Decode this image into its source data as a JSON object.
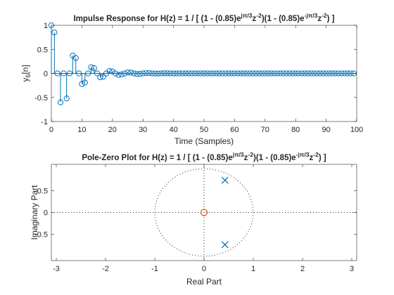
{
  "chart_data": [
    {
      "type": "stem",
      "title": {
        "prefix": "Impulse Response for H(z) = 1 / [ (1 - (0.85)e",
        "exp1": "jπ/3",
        "mid1": "z",
        "exp2": "-2",
        "mid2": ")(1 - (0.85)e",
        "exp3": "-jπ/3",
        "mid3": "z",
        "exp4": "-2",
        "suffix": ") ]"
      },
      "xlabel": "Time (Samples)",
      "ylabel": {
        "base": "y",
        "sub": "6",
        "rest": "[n]"
      },
      "xlim": [
        0,
        100
      ],
      "ylim": [
        -1,
        1
      ],
      "xticks": [
        "0",
        "10",
        "20",
        "30",
        "40",
        "50",
        "60",
        "70",
        "80",
        "90",
        "100"
      ],
      "yticks": [
        "1",
        "0.5",
        "0",
        "-0.5",
        "-1"
      ],
      "n": [
        0,
        1,
        2,
        3,
        4,
        5,
        6,
        7,
        8,
        9,
        10,
        11,
        12,
        13,
        14,
        15,
        16,
        17,
        18,
        19,
        20,
        21,
        22,
        23,
        24,
        25,
        26,
        27,
        28,
        29,
        30,
        31,
        32,
        33,
        34,
        35,
        36,
        37,
        38,
        39,
        40,
        41,
        42,
        43,
        44,
        45,
        46,
        47,
        48,
        49,
        50,
        51,
        52,
        53,
        54,
        55,
        56,
        57,
        58,
        59,
        60,
        61,
        62,
        63,
        64,
        65,
        66,
        67,
        68,
        69,
        70,
        71,
        72,
        73,
        74,
        75,
        76,
        77,
        78,
        79,
        80,
        81,
        82,
        83,
        84,
        85,
        86,
        87,
        88,
        89,
        90,
        91,
        92,
        93,
        94,
        95,
        96,
        97,
        98,
        99
      ],
      "values": [
        1.0,
        0.85,
        0.0,
        -0.6,
        0.0,
        -0.52,
        0.0,
        0.37,
        0.32,
        0.0,
        -0.22,
        -0.19,
        0.0,
        0.13,
        0.11,
        0.0,
        -0.08,
        -0.07,
        0.0,
        0.05,
        0.04,
        0.0,
        -0.03,
        -0.02,
        0.0,
        0.02,
        0.016,
        0.0,
        -0.01,
        -0.009,
        0.0,
        0.006,
        0.005,
        0.0,
        -0.003,
        -0.003,
        0.0,
        0.002,
        0.002,
        0.0,
        -0.001,
        -0.001,
        0.0,
        0.001,
        0.001,
        0.0,
        0.0,
        0.0,
        0.0,
        0.0,
        0.0,
        0.0,
        0.0,
        0.0,
        0.0,
        0.0,
        0.0,
        0.0,
        0.0,
        0.0,
        0.0,
        0.0,
        0.0,
        0.0,
        0.0,
        0.0,
        0.0,
        0.0,
        0.0,
        0.0,
        0.0,
        0.0,
        0.0,
        0.0,
        0.0,
        0.0,
        0.0,
        0.0,
        0.0,
        0.0,
        0.0,
        0.0,
        0.0,
        0.0,
        0.0,
        0.0,
        0.0,
        0.0,
        0.0,
        0.0,
        0.0,
        0.0,
        0.0,
        0.0,
        0.0,
        0.0,
        0.0,
        0.0,
        0.0,
        0.0
      ],
      "color": "#0072BD"
    },
    {
      "type": "pole-zero",
      "title": {
        "prefix": "Pole-Zero Plot for H(z) = 1 / [ (1 - (0.85)e",
        "exp1": "jπ/3",
        "mid1": "z",
        "exp2": "-2",
        "mid2": ")(1 - (0.85)e",
        "exp3": "-jπ/3",
        "mid3": "z",
        "exp4": "-2",
        "suffix": ") ]"
      },
      "xlabel": "Real Part",
      "ylabel": "Imaginary Part",
      "xlim": [
        -3.1,
        3.1
      ],
      "ylim": [
        -1.1,
        1.1
      ],
      "xticks": [
        "-3",
        "-2",
        "-1",
        "0",
        "1",
        "2",
        "3"
      ],
      "yticks": [
        "0.5",
        "0",
        "-0.5"
      ],
      "poles": [
        {
          "re": 0.425,
          "im": 0.736
        },
        {
          "re": 0.425,
          "im": -0.736
        }
      ],
      "zeros": [
        {
          "re": 0.0,
          "im": 0.0
        }
      ],
      "unit_circle": true,
      "pole_color": "#0072BD",
      "zero_color": "#D95319"
    }
  ]
}
